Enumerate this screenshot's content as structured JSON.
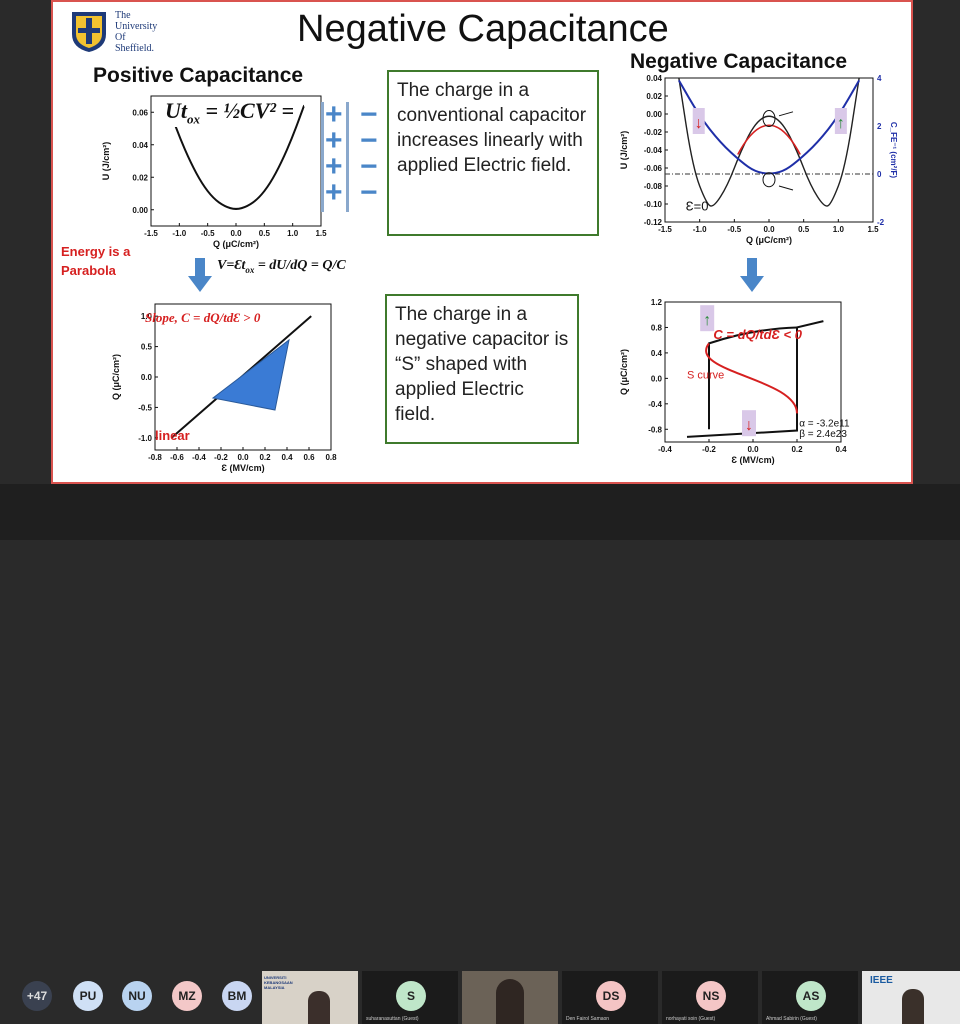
{
  "slide": {
    "university": [
      "The",
      "University",
      "Of",
      "Sheffield."
    ],
    "title": "Negative Capacitance",
    "pos_heading": "Positive Capacitance",
    "neg_heading": "Negative Capacitance",
    "energy_eq": "Ut",
    "energy_eq_sub": "ox",
    "energy_eq_rest": " = ½CV² =",
    "energy_note": "Energy is a Parabola",
    "v_eq": "V=Ɛt",
    "v_eq_sub": "ox",
    "v_eq_rest": " = dU/dQ = Q/C",
    "box1": "The charge in a conventional capacitor increases linearly with applied Electric field.",
    "box2": "The charge in a negative capacitor is “S” shaped with applied Electric field.",
    "slope_eq": "Slope, C = dQ/tdƐ > 0",
    "linear_label": "linear",
    "neg_c_eq": "C = dQ/tdƐ < 0",
    "s_curve_label": "S curve",
    "e0_label": "Ɛ=0",
    "alpha": "α = -3.2e11",
    "beta": "β = 2.4e23",
    "colors": {
      "accent_red": "#d62020",
      "box_green": "#3f7a2c",
      "blue": "#1f2fa8",
      "arrow_blue": "#4a86c8"
    }
  },
  "chart_data": [
    {
      "type": "line",
      "id": "pos-u-q",
      "xlabel": "Q (μC/cm²)",
      "ylabel": "U (J/cm²)",
      "xlim": [
        -1.5,
        1.5
      ],
      "ylim": [
        -0.01,
        0.07
      ],
      "xticks": [
        "-1.5",
        "-1.0",
        "-0.5",
        "0.0",
        "0.5",
        "1.0",
        "1.5"
      ],
      "yticks": [
        "0.00",
        "0.02",
        "0.04",
        "0.06"
      ],
      "series": [
        {
          "x": [
            -1.2,
            -1.0,
            -0.8,
            -0.6,
            -0.4,
            -0.2,
            0,
            0.2,
            0.4,
            0.6,
            0.8,
            1.0,
            1.2
          ],
          "y": [
            0.064,
            0.045,
            0.029,
            0.016,
            0.007,
            0.002,
            0,
            0.002,
            0.007,
            0.016,
            0.029,
            0.045,
            0.064
          ]
        }
      ]
    },
    {
      "type": "line",
      "id": "pos-q-e",
      "xlabel": "Ɛ (MV/cm)",
      "ylabel": "Q (μC/cm²)",
      "xlim": [
        -0.8,
        0.8
      ],
      "ylim": [
        -1.2,
        1.2
      ],
      "xticks": [
        "-0.8",
        "-0.6",
        "-0.4",
        "-0.2",
        "0.0",
        "0.2",
        "0.4",
        "0.6",
        "0.8"
      ],
      "yticks": [
        "-1.0",
        "-0.5",
        "0.0",
        "0.5",
        "1.0"
      ],
      "series": [
        {
          "x": [
            -0.65,
            0.62
          ],
          "y": [
            -1.0,
            1.0
          ]
        }
      ]
    },
    {
      "type": "line",
      "id": "neg-u-q",
      "xlabel": "Q (μC/cm²)",
      "ylabel": "U (J/cm²)",
      "y2label": "C_FE⁻¹ (cm²/F)",
      "xlim": [
        -1.5,
        1.5
      ],
      "ylim": [
        -0.12,
        0.04
      ],
      "y2lim": [
        -2,
        4
      ],
      "xticks": [
        "-1.5",
        "-1.0",
        "-0.5",
        "0.0",
        "0.5",
        "1.0",
        "1.5"
      ],
      "yticks": [
        "0.04",
        "0.02",
        "0.00",
        "-0.02",
        "-0.04",
        "-0.06",
        "-0.08",
        "-0.10",
        "-0.12"
      ],
      "y2ticks": [
        "-2",
        "0",
        "2",
        "4"
      ],
      "series": [
        {
          "name": "U",
          "x": [
            -1.3,
            -1.1,
            -0.9,
            -0.8,
            -0.6,
            -0.4,
            -0.2,
            0,
            0.2,
            0.4,
            0.6,
            0.8,
            0.9,
            1.1,
            1.3
          ],
          "y": [
            0.04,
            -0.06,
            -0.1,
            -0.104,
            -0.08,
            -0.04,
            -0.01,
            0,
            -0.01,
            -0.04,
            -0.08,
            -0.104,
            -0.1,
            -0.06,
            0.04
          ]
        },
        {
          "name": "1/C",
          "x": [
            -1.3,
            -1.0,
            -0.7,
            -0.4,
            -0.2,
            0,
            0.2,
            0.4,
            0.7,
            1.0,
            1.3
          ],
          "y": [
            3.9,
            2.4,
            1.3,
            0.5,
            0.1,
            0,
            0.1,
            0.5,
            1.3,
            2.4,
            3.9
          ]
        }
      ]
    },
    {
      "type": "line",
      "id": "neg-q-e",
      "xlabel": "Ɛ (MV/cm)",
      "ylabel": "Q (μC/cm²)",
      "xlim": [
        -0.4,
        0.4
      ],
      "ylim": [
        -1.0,
        1.2
      ],
      "xticks": [
        "-0.4",
        "-0.2",
        "0.0",
        "0.2",
        "0.4"
      ],
      "yticks": [
        "1.2",
        "0.8",
        "0.4",
        "0.0",
        "-0.4",
        "-0.8"
      ],
      "series": [
        {
          "name": "S curve",
          "x": [
            -0.3,
            -0.2,
            -0.2,
            0.2,
            0.2,
            0.32
          ],
          "y": [
            -0.9,
            -0.8,
            0.75,
            -0.75,
            0.8,
            0.9
          ]
        }
      ]
    }
  ],
  "participants": {
    "more_count": "+47",
    "avatars": [
      {
        "initials": "PU",
        "color": "#cfe0f5"
      },
      {
        "initials": "NU",
        "color": "#b9d3f0"
      },
      {
        "initials": "MZ",
        "color": "#f3c8c8"
      },
      {
        "initials": "BM",
        "color": "#c9d6f2"
      },
      {
        "initials": "S",
        "color": "#bfe6c9"
      },
      {
        "initials": "DS",
        "color": "#f4c4c4"
      },
      {
        "initials": "NS",
        "color": "#f4c6c6"
      },
      {
        "initials": "AS",
        "color": "#bfe6c9"
      }
    ],
    "names": [
      "suharanasuttan (Guest)",
      "Den Fairol Samaon",
      "norhayati soin (Guest)",
      "Ahmad Sabirin (Guest)"
    ],
    "banner_text": "UNIVERSITI KEBANGSAAN MALAYSIA",
    "ieee_label": "IEEE"
  }
}
